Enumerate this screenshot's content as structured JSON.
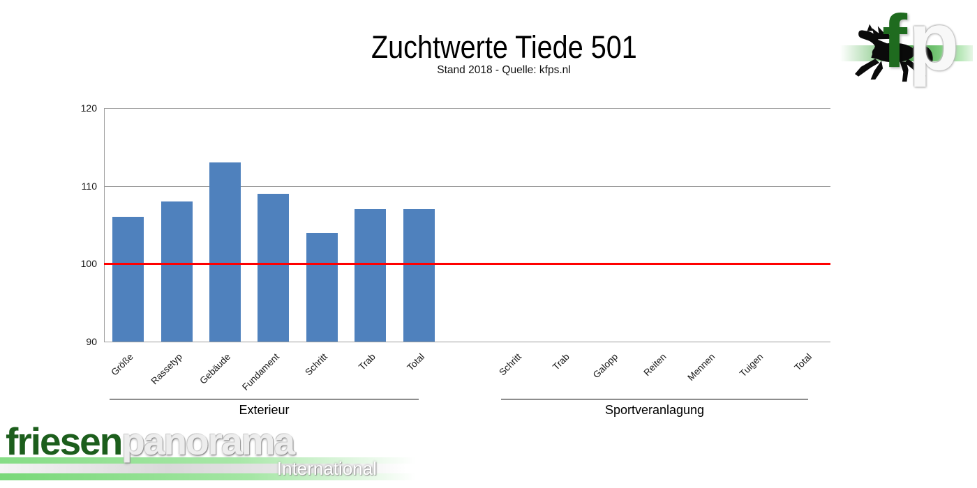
{
  "chart_data": {
    "type": "bar",
    "title": "Zuchtwerte Tiede 501",
    "subtitle": "Stand 2018 - Quelle: kfps.nl",
    "xlabel": "",
    "ylabel": "",
    "ylim": [
      90,
      120
    ],
    "yticks": [
      90,
      100,
      110,
      120
    ],
    "grid": true,
    "legend": false,
    "bar_color": "#4f81bd",
    "reference_line": {
      "value": 100,
      "color": "#ff0000"
    },
    "groups": [
      {
        "label": "Exterieur",
        "categories": [
          "Größe",
          "Rassetyp",
          "Gebäude",
          "Fundament",
          "Schritt",
          "Trab",
          "Total"
        ],
        "values": [
          106,
          108,
          113,
          109,
          104,
          107,
          107
        ]
      },
      {
        "label": "Sportveranlagung",
        "categories": [
          "Schritt",
          "Trab",
          "Galopp",
          "Reiten",
          "Mennen",
          "Tuigen",
          "Total"
        ],
        "values": [
          null,
          null,
          null,
          null,
          null,
          null,
          null
        ]
      }
    ]
  },
  "logos": {
    "top_right": {
      "f": "f",
      "p": "p",
      "f_color": "#1f6b1f"
    },
    "bottom_left": {
      "part1": "friesen",
      "part1_color": "#1c5e1c",
      "part2": "panorama",
      "part2_color": "#ededed",
      "tagline": "International"
    }
  }
}
